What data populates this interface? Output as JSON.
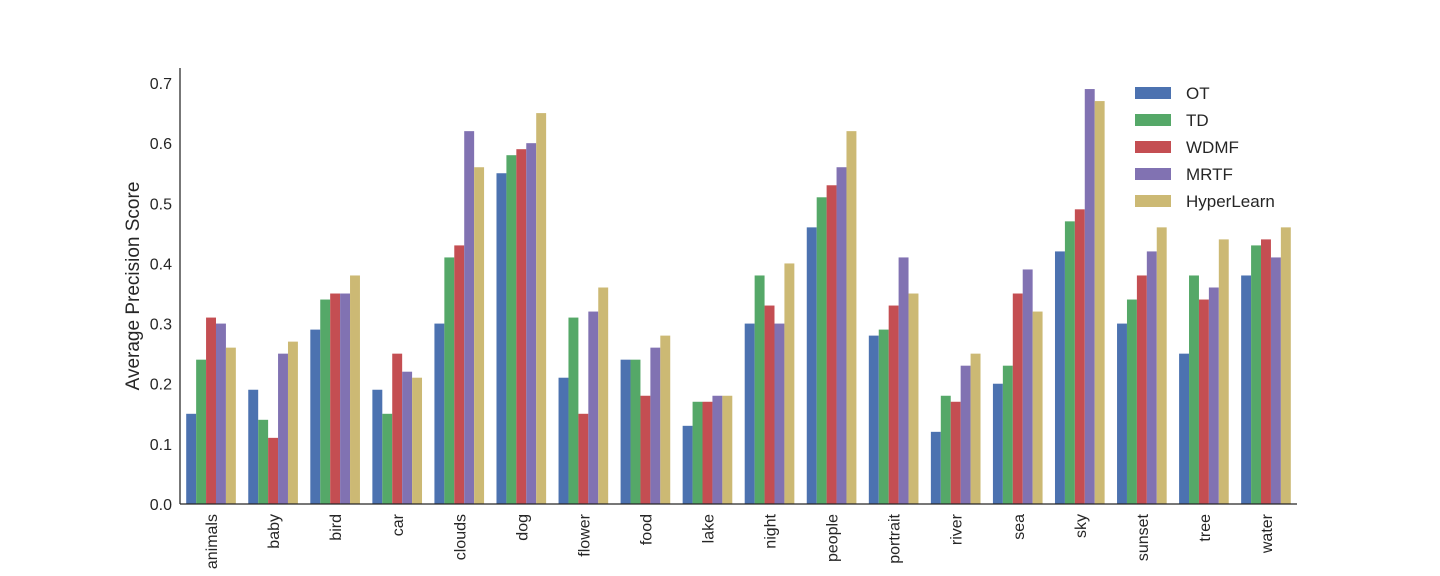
{
  "chart_data": {
    "type": "bar",
    "title": "",
    "xlabel": "",
    "ylabel": "Average Precision Score",
    "ylim": [
      0,
      0.725
    ],
    "yticks": [
      0.0,
      0.1,
      0.2,
      0.3,
      0.4,
      0.5,
      0.6,
      0.7
    ],
    "ytick_labels": [
      "0.0",
      "0.1",
      "0.2",
      "0.3",
      "0.4",
      "0.5",
      "0.6",
      "0.7"
    ],
    "grid": false,
    "legend_position": "top-right",
    "categories": [
      "animals",
      "baby",
      "bird",
      "car",
      "clouds",
      "dog",
      "flower",
      "food",
      "lake",
      "night",
      "people",
      "portrait",
      "river",
      "sea",
      "sky",
      "sunset",
      "tree",
      "water"
    ],
    "series": [
      {
        "name": "OT",
        "color": "#4c72b0",
        "values": [
          0.15,
          0.19,
          0.29,
          0.19,
          0.3,
          0.55,
          0.21,
          0.24,
          0.13,
          0.3,
          0.46,
          0.28,
          0.12,
          0.2,
          0.42,
          0.3,
          0.25,
          0.38
        ]
      },
      {
        "name": "TD",
        "color": "#55a868",
        "values": [
          0.24,
          0.14,
          0.34,
          0.15,
          0.41,
          0.58,
          0.31,
          0.24,
          0.17,
          0.38,
          0.51,
          0.29,
          0.18,
          0.23,
          0.47,
          0.34,
          0.38,
          0.43
        ]
      },
      {
        "name": "WDMF",
        "color": "#c44e52",
        "values": [
          0.31,
          0.11,
          0.35,
          0.25,
          0.43,
          0.59,
          0.15,
          0.18,
          0.17,
          0.33,
          0.53,
          0.33,
          0.17,
          0.35,
          0.49,
          0.38,
          0.34,
          0.44
        ]
      },
      {
        "name": "MRTF",
        "color": "#8172b2",
        "values": [
          0.3,
          0.25,
          0.35,
          0.22,
          0.62,
          0.6,
          0.32,
          0.26,
          0.18,
          0.3,
          0.56,
          0.41,
          0.23,
          0.39,
          0.69,
          0.42,
          0.36,
          0.41
        ]
      },
      {
        "name": "HyperLearn",
        "color": "#ccb974",
        "values": [
          0.26,
          0.27,
          0.38,
          0.21,
          0.56,
          0.65,
          0.36,
          0.28,
          0.18,
          0.4,
          0.62,
          0.35,
          0.25,
          0.32,
          0.67,
          0.46,
          0.44,
          0.46
        ]
      }
    ]
  }
}
